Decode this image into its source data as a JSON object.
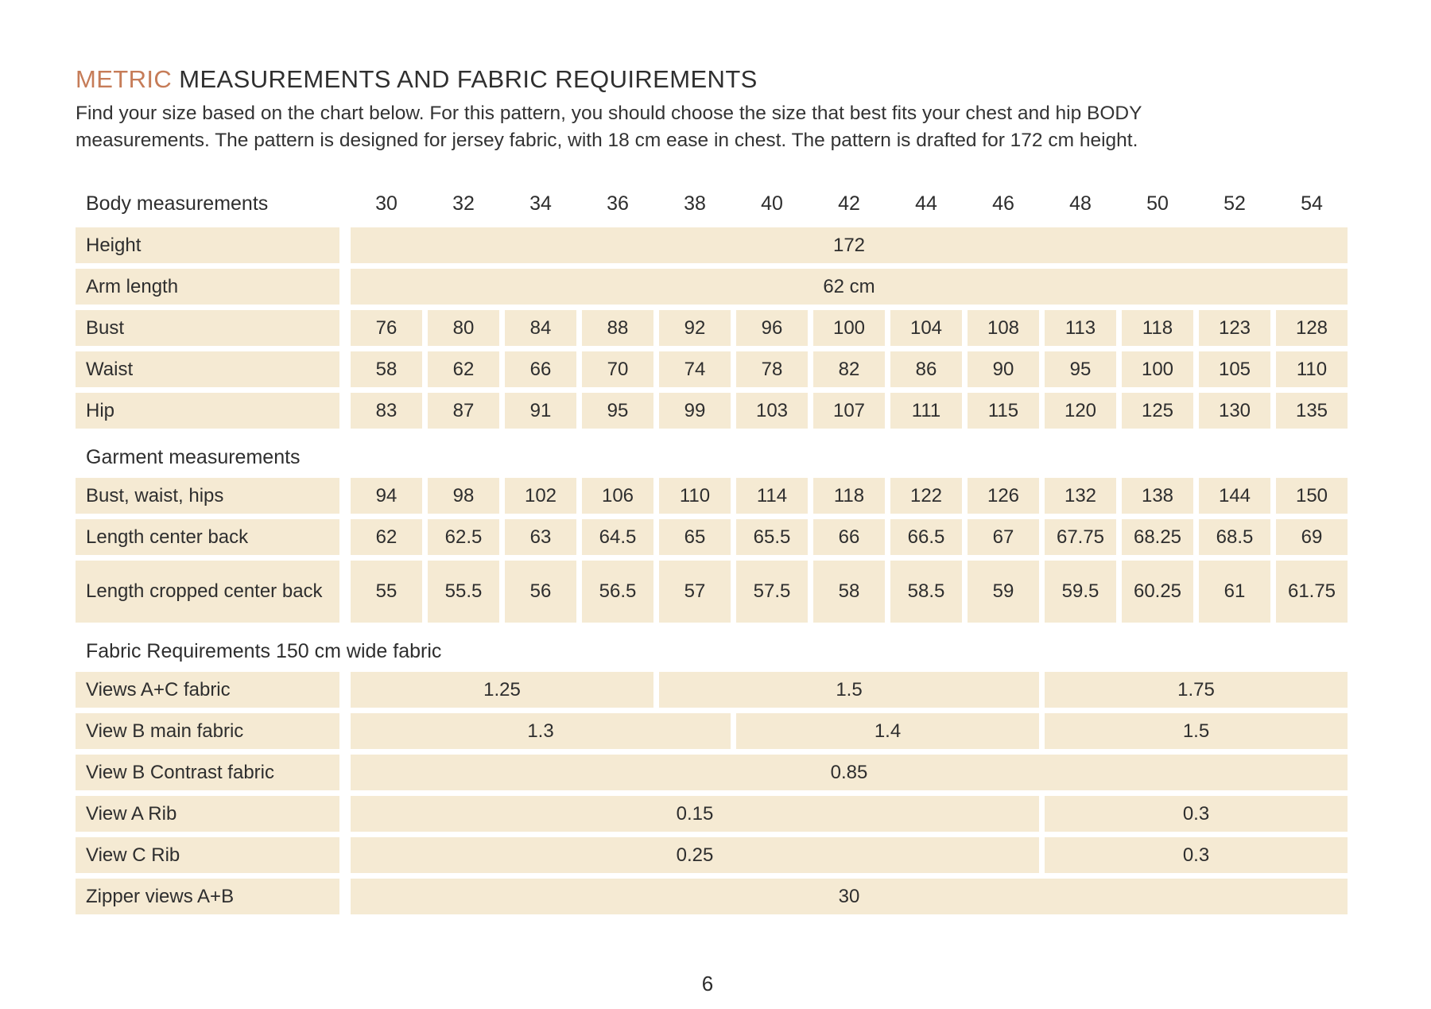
{
  "header": {
    "title_highlight": "METRIC",
    "title_rest": " MEASUREMENTS AND FABRIC REQUIREMENTS",
    "intro_line1": "Find your size based on the chart below. For this pattern, you should choose the size that best fits your chest and hip BODY",
    "intro_line2": "measurements. The pattern is designed for jersey fabric, with 18 cm ease in chest. The pattern is drafted for 172 cm height."
  },
  "colors": {
    "accent": "#c67c58",
    "cell_background": "#f5ead3",
    "text": "#2e2e2e"
  },
  "footer": {
    "page_number": "6"
  },
  "table": {
    "rows": [
      {
        "kind": "head",
        "label": "Body measurements",
        "cells": [
          {
            "text": "30"
          },
          {
            "text": "32"
          },
          {
            "text": "34"
          },
          {
            "text": "36"
          },
          {
            "text": "38"
          },
          {
            "text": "40"
          },
          {
            "text": "42"
          },
          {
            "text": "44"
          },
          {
            "text": "46"
          },
          {
            "text": "48"
          },
          {
            "text": "50"
          },
          {
            "text": "52"
          },
          {
            "text": "54"
          }
        ]
      },
      {
        "kind": "data",
        "label": "Height",
        "cells": [
          {
            "text": "172",
            "span": 13
          }
        ]
      },
      {
        "kind": "data",
        "label": "Arm length",
        "cells": [
          {
            "text": "62 cm",
            "span": 13
          }
        ]
      },
      {
        "kind": "data",
        "label": "Bust",
        "cells": [
          {
            "text": "76"
          },
          {
            "text": "80"
          },
          {
            "text": "84"
          },
          {
            "text": "88"
          },
          {
            "text": "92"
          },
          {
            "text": "96"
          },
          {
            "text": "100"
          },
          {
            "text": "104"
          },
          {
            "text": "108"
          },
          {
            "text": "113"
          },
          {
            "text": "118"
          },
          {
            "text": "123"
          },
          {
            "text": "128"
          }
        ]
      },
      {
        "kind": "data",
        "label": "Waist",
        "cells": [
          {
            "text": "58"
          },
          {
            "text": "62"
          },
          {
            "text": "66"
          },
          {
            "text": "70"
          },
          {
            "text": "74"
          },
          {
            "text": "78"
          },
          {
            "text": "82"
          },
          {
            "text": "86"
          },
          {
            "text": "90"
          },
          {
            "text": "95"
          },
          {
            "text": "100"
          },
          {
            "text": "105"
          },
          {
            "text": "110"
          }
        ]
      },
      {
        "kind": "data",
        "label": "Hip",
        "cells": [
          {
            "text": "83"
          },
          {
            "text": "87"
          },
          {
            "text": "91"
          },
          {
            "text": "95"
          },
          {
            "text": "99"
          },
          {
            "text": "103"
          },
          {
            "text": "107"
          },
          {
            "text": "111"
          },
          {
            "text": "115"
          },
          {
            "text": "120"
          },
          {
            "text": "125"
          },
          {
            "text": "130"
          },
          {
            "text": "135"
          }
        ]
      },
      {
        "kind": "section",
        "label": "Garment measurements"
      },
      {
        "kind": "data",
        "label": "Bust, waist, hips",
        "cells": [
          {
            "text": "94"
          },
          {
            "text": "98"
          },
          {
            "text": "102"
          },
          {
            "text": "106"
          },
          {
            "text": "110"
          },
          {
            "text": "114"
          },
          {
            "text": "118"
          },
          {
            "text": "122"
          },
          {
            "text": "126"
          },
          {
            "text": "132"
          },
          {
            "text": "138"
          },
          {
            "text": "144"
          },
          {
            "text": "150"
          }
        ]
      },
      {
        "kind": "data",
        "label": "Length center back",
        "cells": [
          {
            "text": "62"
          },
          {
            "text": "62.5"
          },
          {
            "text": "63"
          },
          {
            "text": "64.5"
          },
          {
            "text": "65"
          },
          {
            "text": "65.5"
          },
          {
            "text": "66"
          },
          {
            "text": "66.5"
          },
          {
            "text": "67"
          },
          {
            "text": "67.75"
          },
          {
            "text": "68.25"
          },
          {
            "text": "68.5"
          },
          {
            "text": "69"
          }
        ]
      },
      {
        "kind": "data",
        "label": "Length cropped center back",
        "tall": true,
        "cells": [
          {
            "text": "55"
          },
          {
            "text": "55.5"
          },
          {
            "text": "56"
          },
          {
            "text": "56.5"
          },
          {
            "text": "57"
          },
          {
            "text": "57.5"
          },
          {
            "text": "58"
          },
          {
            "text": "58.5"
          },
          {
            "text": "59"
          },
          {
            "text": "59.5"
          },
          {
            "text": "60.25"
          },
          {
            "text": "61"
          },
          {
            "text": "61.75"
          }
        ]
      },
      {
        "kind": "section",
        "label": "Fabric Requirements 150 cm wide fabric"
      },
      {
        "kind": "data",
        "label": "Views A+C fabric",
        "cells": [
          {
            "text": "1.25",
            "span": 4
          },
          {
            "text": "1.5",
            "span": 5
          },
          {
            "text": "1.75",
            "span": 4
          }
        ]
      },
      {
        "kind": "data",
        "label": "View B main fabric",
        "cells": [
          {
            "text": "1.3",
            "span": 5
          },
          {
            "text": "1.4",
            "span": 4
          },
          {
            "text": "1.5",
            "span": 4
          }
        ]
      },
      {
        "kind": "data",
        "label": "View B Contrast fabric",
        "cells": [
          {
            "text": "0.85",
            "span": 13
          }
        ]
      },
      {
        "kind": "data",
        "label": "View A  Rib",
        "cells": [
          {
            "text": "0.15",
            "span": 9
          },
          {
            "text": "0.3",
            "span": 4
          }
        ]
      },
      {
        "kind": "data",
        "label": "View C Rib",
        "cells": [
          {
            "text": "0.25",
            "span": 9
          },
          {
            "text": "0.3",
            "span": 4
          }
        ]
      },
      {
        "kind": "data",
        "label": "Zipper views A+B",
        "cells": [
          {
            "text": "30",
            "span": 13
          }
        ]
      }
    ]
  }
}
